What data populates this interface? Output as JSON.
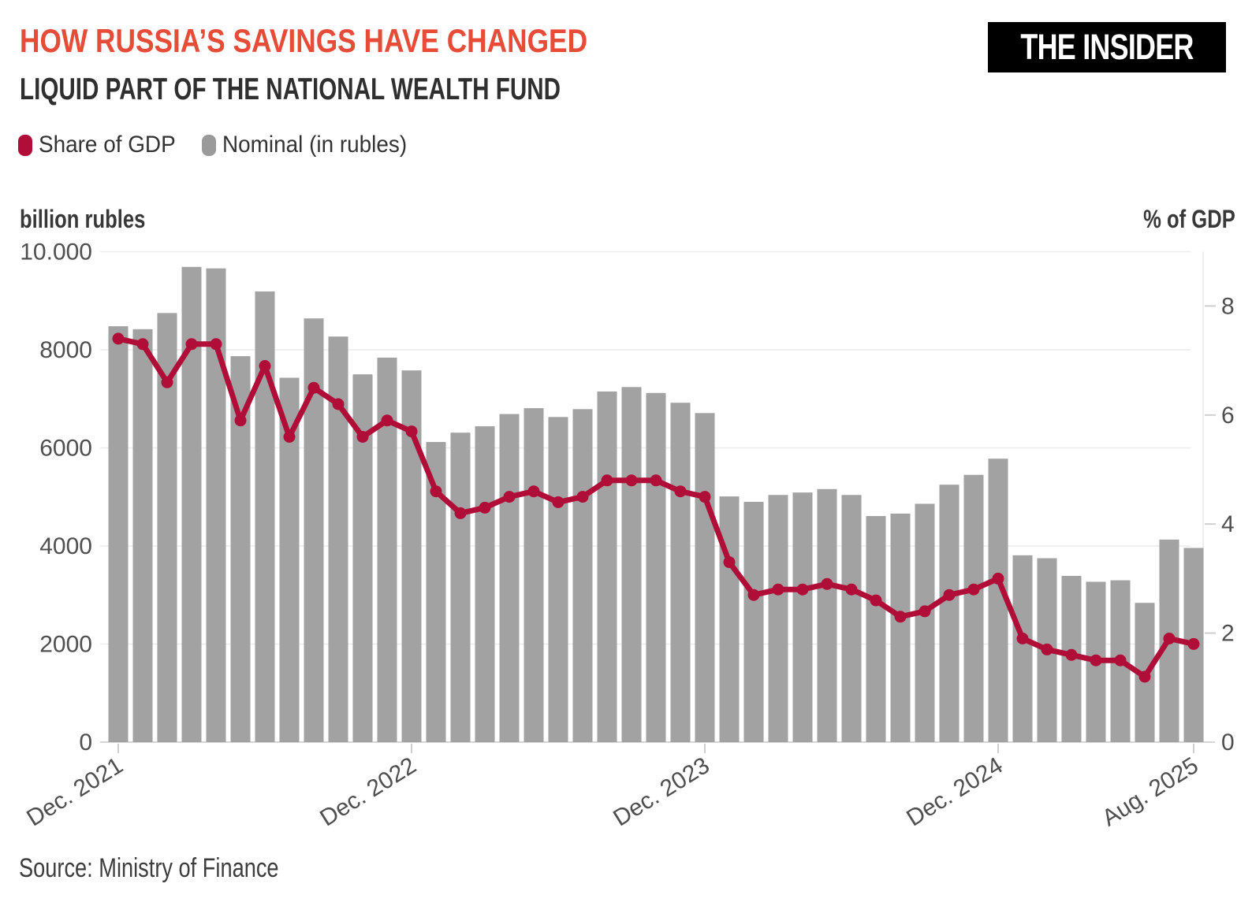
{
  "header": {
    "title": "HOW RUSSIA’S SAVINGS HAVE CHANGED",
    "subtitle": "LIQUID PART OF THE NATIONAL WEALTH FUND",
    "logo": "THE INSIDER"
  },
  "legend": [
    {
      "label": "Share of GDP",
      "color": "#b00d39",
      "icon": "rounded-swatch"
    },
    {
      "label": "Nominal (in rubles)",
      "color": "#9a9a9a",
      "icon": "rounded-swatch"
    }
  ],
  "source": "Source: Ministry of Finance",
  "colors": {
    "title_accent": "#e64c38",
    "line_red": "#b00d39",
    "bar_gray": "#a2a2a2",
    "gridline": "#ececec",
    "baseline": "#d6d6d6",
    "tick": "#cfcfcf",
    "axis_text": "#4f4f4f"
  },
  "chart_data": {
    "type": "bar",
    "title": "Liquid part of the National Wealth Fund",
    "left_axis_title": "billion rubles",
    "right_axis_title": "% of GDP",
    "left_ylim": [
      0,
      10000
    ],
    "right_ylim": [
      0,
      8
    ],
    "grid": true,
    "legend_position": "top-left",
    "left_ticks": [
      {
        "value": 0,
        "label": "0"
      },
      {
        "value": 2000,
        "label": "2000"
      },
      {
        "value": 4000,
        "label": "4000"
      },
      {
        "value": 6000,
        "label": "6000"
      },
      {
        "value": 8000,
        "label": "8000"
      },
      {
        "value": 10000,
        "label": "10.000"
      }
    ],
    "right_ticks": [
      {
        "value": 0,
        "label": "0"
      },
      {
        "value": 2,
        "label": "2"
      },
      {
        "value": 4,
        "label": "4"
      },
      {
        "value": 6,
        "label": "6"
      },
      {
        "value": 8,
        "label": "8"
      }
    ],
    "x_tick_labels": [
      {
        "index": 0,
        "label": "Dec. 2021"
      },
      {
        "index": 12,
        "label": "Dec. 2022"
      },
      {
        "index": 24,
        "label": "Dec. 2023"
      },
      {
        "index": 36,
        "label": "Dec. 2024"
      },
      {
        "index": 44,
        "label": "Aug. 2025"
      }
    ],
    "series": [
      {
        "name": "Nominal (in rubles)",
        "type": "bar",
        "axis": "left",
        "color": "#a2a2a2",
        "values": [
          8480,
          8420,
          8750,
          9690,
          9660,
          7870,
          9190,
          7430,
          8640,
          8270,
          7500,
          7840,
          7580,
          6120,
          6310,
          6440,
          6690,
          6810,
          6630,
          6790,
          7150,
          7240,
          7120,
          6920,
          6710,
          5010,
          4900,
          5040,
          5090,
          5160,
          5040,
          4610,
          4660,
          4860,
          5250,
          5450,
          5780,
          3810,
          3750,
          3390,
          3270,
          3300,
          2840,
          4130,
          3960
        ]
      },
      {
        "name": "Share of GDP",
        "type": "line",
        "axis": "right",
        "color": "#b00d39",
        "values": [
          7.4,
          7.3,
          6.6,
          7.3,
          7.3,
          5.9,
          6.9,
          5.6,
          6.5,
          6.2,
          5.6,
          5.9,
          5.7,
          4.6,
          4.2,
          4.3,
          4.5,
          4.6,
          4.4,
          4.5,
          4.8,
          4.8,
          4.8,
          4.6,
          4.5,
          3.3,
          2.7,
          2.8,
          2.8,
          2.9,
          2.8,
          2.6,
          2.3,
          2.4,
          2.7,
          2.8,
          3.0,
          1.9,
          1.7,
          1.6,
          1.5,
          1.5,
          1.2,
          1.9,
          1.8
        ]
      }
    ]
  }
}
